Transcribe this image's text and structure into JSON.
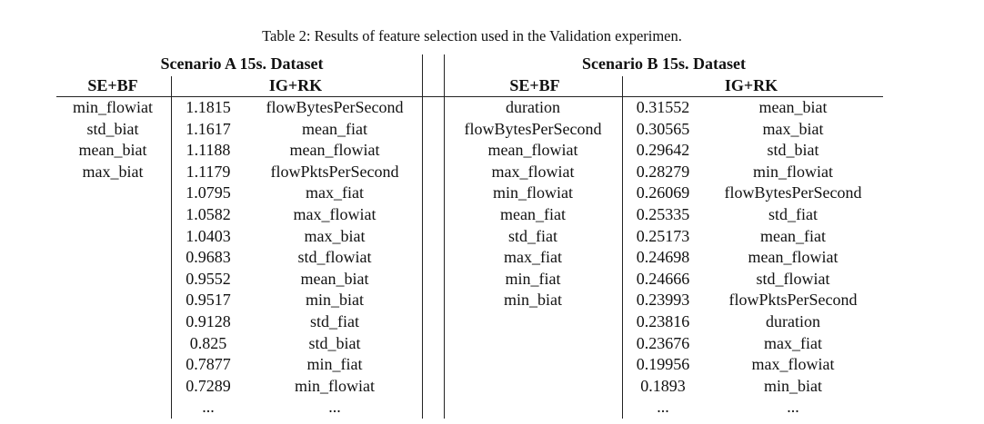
{
  "caption": "Table 2: Results of feature selection used in the Validation experimen.",
  "scenario_a": {
    "title": "Scenario A 15s. Dataset",
    "col_sebf": "SE+BF",
    "col_igrk": "IG+RK",
    "sebf": [
      "min_flowiat",
      "std_biat",
      "mean_biat",
      "max_biat"
    ],
    "igrk": [
      {
        "score": "1.1815",
        "feature": "flowBytesPerSecond"
      },
      {
        "score": "1.1617",
        "feature": "mean_fiat"
      },
      {
        "score": "1.1188",
        "feature": "mean_flowiat"
      },
      {
        "score": "1.1179",
        "feature": "flowPktsPerSecond"
      },
      {
        "score": "1.0795",
        "feature": "max_fiat"
      },
      {
        "score": "1.0582",
        "feature": "max_flowiat"
      },
      {
        "score": "1.0403",
        "feature": "max_biat"
      },
      {
        "score": "0.9683",
        "feature": "std_flowiat"
      },
      {
        "score": "0.9552",
        "feature": "mean_biat"
      },
      {
        "score": "0.9517",
        "feature": "min_biat"
      },
      {
        "score": "0.9128",
        "feature": "std_fiat"
      },
      {
        "score": "0.825",
        "feature": "std_biat"
      },
      {
        "score": "0.7877",
        "feature": "min_fiat"
      },
      {
        "score": "0.7289",
        "feature": "min_flowiat"
      },
      {
        "score": "...",
        "feature": "..."
      }
    ]
  },
  "scenario_b": {
    "title": "Scenario B 15s. Dataset",
    "col_sebf": "SE+BF",
    "col_igrk": "IG+RK",
    "sebf": [
      "duration",
      "flowBytesPerSecond",
      "mean_flowiat",
      "max_flowiat",
      "min_flowiat",
      "mean_fiat",
      "std_fiat",
      "max_fiat",
      "min_fiat",
      "min_biat"
    ],
    "igrk": [
      {
        "score": "0.31552",
        "feature": "mean_biat"
      },
      {
        "score": "0.30565",
        "feature": "max_biat"
      },
      {
        "score": "0.29642",
        "feature": "std_biat"
      },
      {
        "score": "0.28279",
        "feature": "min_flowiat"
      },
      {
        "score": "0.26069",
        "feature": "flowBytesPerSecond"
      },
      {
        "score": "0.25335",
        "feature": "std_fiat"
      },
      {
        "score": "0.25173",
        "feature": "mean_fiat"
      },
      {
        "score": "0.24698",
        "feature": "mean_flowiat"
      },
      {
        "score": "0.24666",
        "feature": "std_flowiat"
      },
      {
        "score": "0.23993",
        "feature": "flowPktsPerSecond"
      },
      {
        "score": "0.23816",
        "feature": "duration"
      },
      {
        "score": "0.23676",
        "feature": "max_fiat"
      },
      {
        "score": "0.19956",
        "feature": "max_flowiat"
      },
      {
        "score": "0.1893",
        "feature": "min_biat"
      },
      {
        "score": "...",
        "feature": "..."
      }
    ]
  }
}
